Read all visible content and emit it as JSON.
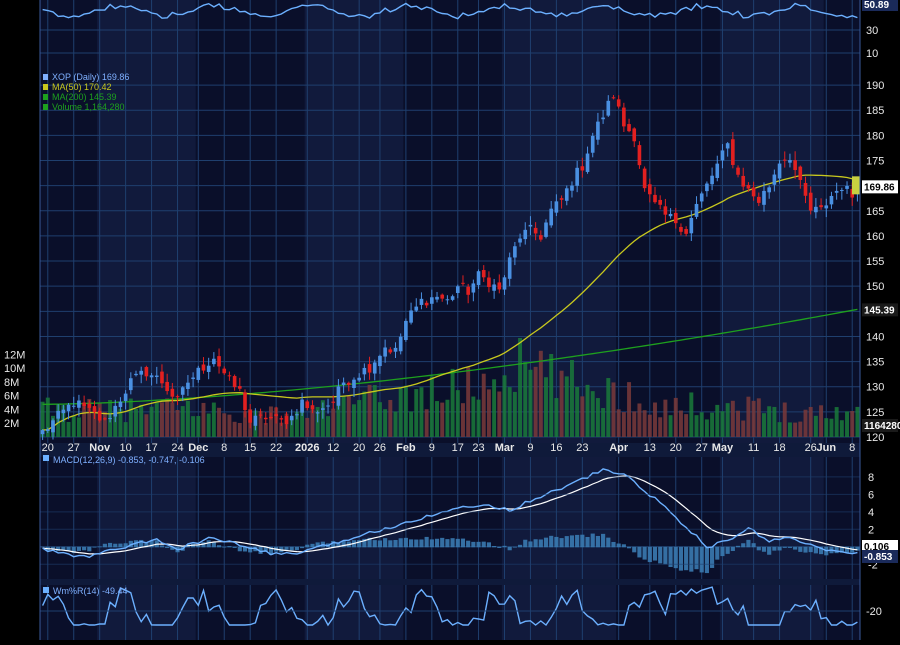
{
  "chart_data": {
    "type": "candlestick",
    "symbol_legend": "XOP (Daily) 169.86",
    "colors": {
      "background": "#000000",
      "panel": "#0a0f2a",
      "panel_alt": "#111a3c",
      "grid": "#1f3f6e",
      "up": "#4a90e2",
      "down": "#e22020",
      "ma50": "#c8c81e",
      "ma200": "#1ea01e",
      "volume_up": "#1a7a3a",
      "volume_down": "#7a3a3a",
      "macd": "#6cb0ff",
      "signal": "#ffffff",
      "hist": "#3a7ab0",
      "text": "#e8e8e8",
      "legend_text": "#7fb0ff"
    },
    "legend": [
      {
        "label": "XOP (Daily) 169.86",
        "color": "#7fb0ff",
        "icon": "candle-icon"
      },
      {
        "label": "MA(50) 170.42",
        "color": "#c8c81e",
        "icon": "line-icon"
      },
      {
        "label": "MA(200) 145.39",
        "color": "#1ea01e",
        "icon": "line-icon"
      },
      {
        "label": "Volume 1,164,280",
        "color": "#1ea01e",
        "icon": "bar-icon"
      }
    ],
    "price_axis": {
      "ylim": [
        120,
        193
      ],
      "ticks": [
        "190",
        "185",
        "180",
        "175",
        "170",
        "165",
        "160",
        "155",
        "150",
        "145",
        "140",
        "135",
        "130",
        "125",
        "120"
      ]
    },
    "volume_axis": {
      "ylim": [
        0,
        17000000
      ],
      "ticks": [
        "12M",
        "10M",
        "8M",
        "6M",
        "4M",
        "2M"
      ]
    },
    "badges": {
      "last_price": "169.86",
      "ma200": "145.39",
      "volume": "1164280",
      "top_osc": "50.89",
      "macd_a": "0.106",
      "macd_b": "-0.853"
    },
    "top_axis": {
      "ticks": [
        "30",
        "10"
      ]
    },
    "x_labels": [
      {
        "label": "20",
        "idx": 1,
        "bold": false
      },
      {
        "label": "27",
        "idx": 6,
        "bold": false
      },
      {
        "label": "Nov",
        "idx": 11,
        "bold": true
      },
      {
        "label": "10",
        "idx": 16,
        "bold": false
      },
      {
        "label": "17",
        "idx": 21,
        "bold": false
      },
      {
        "label": "24",
        "idx": 26,
        "bold": false
      },
      {
        "label": "Dec",
        "idx": 30,
        "bold": true
      },
      {
        "label": "8",
        "idx": 35,
        "bold": false
      },
      {
        "label": "15",
        "idx": 40,
        "bold": false
      },
      {
        "label": "22",
        "idx": 45,
        "bold": false
      },
      {
        "label": "2026",
        "idx": 51,
        "bold": true
      },
      {
        "label": "12",
        "idx": 56,
        "bold": false
      },
      {
        "label": "20",
        "idx": 61,
        "bold": false
      },
      {
        "label": "26",
        "idx": 65,
        "bold": false
      },
      {
        "label": "Feb",
        "idx": 70,
        "bold": true
      },
      {
        "label": "9",
        "idx": 75,
        "bold": false
      },
      {
        "label": "17",
        "idx": 80,
        "bold": false
      },
      {
        "label": "23",
        "idx": 84,
        "bold": false
      },
      {
        "label": "Mar",
        "idx": 89,
        "bold": true
      },
      {
        "label": "9",
        "idx": 94,
        "bold": false
      },
      {
        "label": "16",
        "idx": 99,
        "bold": false
      },
      {
        "label": "23",
        "idx": 104,
        "bold": false
      },
      {
        "label": "Apr",
        "idx": 111,
        "bold": true
      },
      {
        "label": "13",
        "idx": 117,
        "bold": false
      },
      {
        "label": "20",
        "idx": 122,
        "bold": false
      },
      {
        "label": "27",
        "idx": 127,
        "bold": false
      },
      {
        "label": "May",
        "idx": 131,
        "bold": true
      },
      {
        "label": "11",
        "idx": 137,
        "bold": false
      },
      {
        "label": "18",
        "idx": 142,
        "bold": false
      },
      {
        "label": "26",
        "idx": 148,
        "bold": false
      },
      {
        "label": "Jun",
        "idx": 151,
        "bold": true
      },
      {
        "label": "8",
        "idx": 156,
        "bold": false
      }
    ],
    "price_anchors": [
      [
        0,
        121
      ],
      [
        3,
        124
      ],
      [
        6,
        127
      ],
      [
        9,
        125
      ],
      [
        12,
        123
      ],
      [
        14,
        126
      ],
      [
        17,
        131
      ],
      [
        20,
        133
      ],
      [
        23,
        131
      ],
      [
        26,
        127
      ],
      [
        28,
        131
      ],
      [
        31,
        134
      ],
      [
        33,
        136
      ],
      [
        36,
        131
      ],
      [
        38,
        129
      ],
      [
        40,
        123
      ],
      [
        43,
        124
      ],
      [
        46,
        123
      ],
      [
        48,
        124
      ],
      [
        50,
        127
      ],
      [
        52,
        125
      ],
      [
        54,
        126
      ],
      [
        56,
        127
      ],
      [
        58,
        131
      ],
      [
        60,
        132
      ],
      [
        63,
        134
      ],
      [
        66,
        138
      ],
      [
        68,
        137
      ],
      [
        70,
        143
      ],
      [
        73,
        147
      ],
      [
        76,
        148
      ],
      [
        78,
        147
      ],
      [
        80,
        150
      ],
      [
        82,
        149
      ],
      [
        84,
        152
      ],
      [
        86,
        151
      ],
      [
        88,
        149
      ],
      [
        90,
        155
      ],
      [
        92,
        160
      ],
      [
        94,
        161
      ],
      [
        96,
        160
      ],
      [
        98,
        165
      ],
      [
        100,
        167
      ],
      [
        102,
        171
      ],
      [
        104,
        174
      ],
      [
        106,
        180
      ],
      [
        108,
        184
      ],
      [
        110,
        188
      ],
      [
        112,
        182
      ],
      [
        114,
        180
      ],
      [
        116,
        169
      ],
      [
        118,
        166
      ],
      [
        120,
        164
      ],
      [
        122,
        163
      ],
      [
        124,
        161
      ],
      [
        126,
        166
      ],
      [
        128,
        170
      ],
      [
        130,
        174
      ],
      [
        132,
        178
      ],
      [
        134,
        172
      ],
      [
        136,
        169
      ],
      [
        138,
        167
      ],
      [
        140,
        170
      ],
      [
        142,
        175
      ],
      [
        144,
        176
      ],
      [
        146,
        170
      ],
      [
        148,
        165
      ],
      [
        150,
        165
      ],
      [
        152,
        168
      ],
      [
        154,
        170
      ],
      [
        156,
        168
      ],
      [
        157,
        169.86
      ]
    ],
    "volume_anchors": [
      [
        0,
        4.0
      ],
      [
        10,
        3.8
      ],
      [
        20,
        4.0
      ],
      [
        30,
        4.2
      ],
      [
        40,
        3.2
      ],
      [
        50,
        3.5
      ],
      [
        55,
        4.5
      ],
      [
        60,
        5.0
      ],
      [
        70,
        6.0
      ],
      [
        80,
        7.0
      ],
      [
        88,
        8.5
      ],
      [
        90,
        10.5
      ],
      [
        95,
        9.5
      ],
      [
        100,
        8.0
      ],
      [
        105,
        7.5
      ],
      [
        110,
        6.5
      ],
      [
        115,
        5.5
      ],
      [
        120,
        4.5
      ],
      [
        125,
        4.5
      ],
      [
        130,
        4.6
      ],
      [
        140,
        4.0
      ],
      [
        150,
        3.5
      ],
      [
        157,
        3.8
      ]
    ],
    "macd": {
      "label": "MACD(12,26,9)",
      "values": "-0.853, -0.747, -0.106",
      "ylim": [
        -3.8,
        10.5
      ],
      "ticks": [
        "8",
        "6",
        "4",
        "2",
        "-2"
      ],
      "anchors": [
        [
          0,
          -0.3
        ],
        [
          8,
          -1.2
        ],
        [
          16,
          0.0
        ],
        [
          22,
          0.8
        ],
        [
          26,
          -0.3
        ],
        [
          32,
          1.0
        ],
        [
          38,
          0.2
        ],
        [
          44,
          -0.8
        ],
        [
          50,
          -0.7
        ],
        [
          56,
          0.4
        ],
        [
          62,
          1.4
        ],
        [
          70,
          2.8
        ],
        [
          78,
          4.2
        ],
        [
          86,
          4.8
        ],
        [
          90,
          4.2
        ],
        [
          96,
          5.8
        ],
        [
          102,
          7.2
        ],
        [
          108,
          8.8
        ],
        [
          112,
          8.3
        ],
        [
          118,
          5.5
        ],
        [
          124,
          2.3
        ],
        [
          128,
          0.0
        ],
        [
          132,
          0.6
        ],
        [
          136,
          2.2
        ],
        [
          140,
          0.6
        ],
        [
          144,
          1.2
        ],
        [
          150,
          -0.3
        ],
        [
          157,
          -0.85
        ]
      ]
    },
    "wmr": {
      "label": "Wm%R(14)",
      "value": "-49.44",
      "ylim": [
        -50,
        0
      ],
      "tick": "-20"
    },
    "n_bars": 158
  }
}
